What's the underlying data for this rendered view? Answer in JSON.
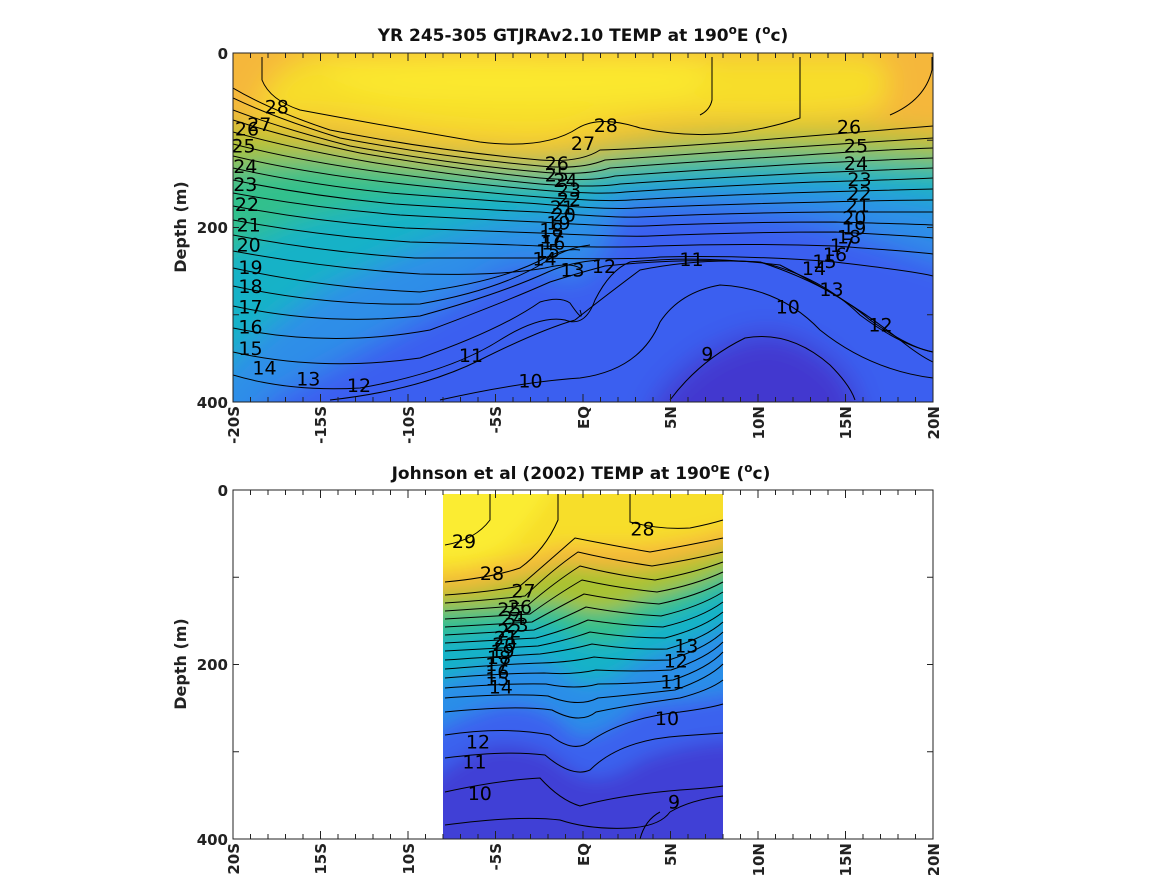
{
  "chart_data": [
    {
      "type": "heatmap",
      "title_parts": [
        "YR 245-305 GTJRAv2.10 TEMP at 190",
        "o",
        "E (",
        "o",
        "c)"
      ],
      "ylabel": "Depth (m)",
      "x_ticks": [
        "-20S",
        "-15S",
        "-10S",
        "-5S",
        "EQ",
        "5N",
        "10N",
        "15N",
        "20N"
      ],
      "x_tick_values": [
        -20,
        -15,
        -10,
        -5,
        0,
        5,
        10,
        15,
        20
      ],
      "xlim": [
        -20,
        20
      ],
      "y_ticks": [
        "0",
        "200",
        "400"
      ],
      "y_tick_values": [
        0,
        200,
        400
      ],
      "ylim": [
        0,
        400
      ],
      "y_inverted": true,
      "data_xlim": [
        -20,
        20
      ],
      "contour_levels": [
        9,
        10,
        11,
        12,
        13,
        14,
        15,
        16,
        17,
        18,
        19,
        20,
        21,
        22,
        23,
        24,
        25,
        26,
        27,
        28
      ],
      "colormap": [
        "#3e26a8",
        "#3a5ff0",
        "#2d8ee8",
        "#19b2c7",
        "#33c08c",
        "#a9c230",
        "#f5b73b",
        "#f9e326"
      ],
      "contour_labels": [
        {
          "text": "28",
          "lat": -17.5,
          "depth": 63
        },
        {
          "text": "27",
          "lat": -18.5,
          "depth": 83
        },
        {
          "text": "26",
          "lat": -19.2,
          "depth": 88
        },
        {
          "text": "25",
          "lat": -19.4,
          "depth": 108
        },
        {
          "text": "24",
          "lat": -19.3,
          "depth": 131
        },
        {
          "text": "23",
          "lat": -19.3,
          "depth": 152
        },
        {
          "text": "22",
          "lat": -19.2,
          "depth": 175
        },
        {
          "text": "21",
          "lat": -19.1,
          "depth": 198
        },
        {
          "text": "20",
          "lat": -19.1,
          "depth": 221
        },
        {
          "text": "19",
          "lat": -19.0,
          "depth": 247
        },
        {
          "text": "18",
          "lat": -19.0,
          "depth": 269
        },
        {
          "text": "17",
          "lat": -19.0,
          "depth": 292
        },
        {
          "text": "16",
          "lat": -19.0,
          "depth": 315
        },
        {
          "text": "15",
          "lat": -19.0,
          "depth": 340
        },
        {
          "text": "14",
          "lat": -18.2,
          "depth": 362
        },
        {
          "text": "13",
          "lat": -15.7,
          "depth": 375
        },
        {
          "text": "12",
          "lat": -12.8,
          "depth": 382
        },
        {
          "text": "11",
          "lat": -6.4,
          "depth": 348
        },
        {
          "text": "10",
          "lat": -3.0,
          "depth": 377
        },
        {
          "text": "9",
          "lat": 7.1,
          "depth": 346
        },
        {
          "text": "28",
          "lat": 1.3,
          "depth": 84
        },
        {
          "text": "27",
          "lat": 0.0,
          "depth": 105
        },
        {
          "text": "26",
          "lat": -1.5,
          "depth": 128
        },
        {
          "text": "25",
          "lat": -1.5,
          "depth": 141
        },
        {
          "text": "24",
          "lat": -1.0,
          "depth": 147
        },
        {
          "text": "23",
          "lat": -0.8,
          "depth": 158
        },
        {
          "text": "22",
          "lat": -0.8,
          "depth": 169
        },
        {
          "text": "21",
          "lat": -1.2,
          "depth": 178
        },
        {
          "text": "20",
          "lat": -1.1,
          "depth": 187
        },
        {
          "text": "19",
          "lat": -1.4,
          "depth": 196
        },
        {
          "text": "18",
          "lat": -1.8,
          "depth": 204
        },
        {
          "text": "17",
          "lat": -1.8,
          "depth": 212
        },
        {
          "text": "16",
          "lat": -1.7,
          "depth": 219
        },
        {
          "text": "15",
          "lat": -2.0,
          "depth": 228
        },
        {
          "text": "14",
          "lat": -2.2,
          "depth": 237
        },
        {
          "text": "13",
          "lat": -0.6,
          "depth": 250
        },
        {
          "text": "12",
          "lat": 1.2,
          "depth": 246
        },
        {
          "text": "11",
          "lat": 6.2,
          "depth": 238
        },
        {
          "text": "10",
          "lat": 11.7,
          "depth": 292
        },
        {
          "text": "26",
          "lat": 15.2,
          "depth": 86
        },
        {
          "text": "25",
          "lat": 15.6,
          "depth": 108
        },
        {
          "text": "24",
          "lat": 15.6,
          "depth": 128
        },
        {
          "text": "23",
          "lat": 15.8,
          "depth": 146
        },
        {
          "text": "22",
          "lat": 15.8,
          "depth": 162
        },
        {
          "text": "21",
          "lat": 15.7,
          "depth": 176
        },
        {
          "text": "20",
          "lat": 15.5,
          "depth": 190
        },
        {
          "text": "19",
          "lat": 15.5,
          "depth": 202
        },
        {
          "text": "18",
          "lat": 15.2,
          "depth": 212
        },
        {
          "text": "17",
          "lat": 14.8,
          "depth": 222
        },
        {
          "text": "16",
          "lat": 14.4,
          "depth": 232
        },
        {
          "text": "15",
          "lat": 13.8,
          "depth": 240
        },
        {
          "text": "14",
          "lat": 13.2,
          "depth": 248
        },
        {
          "text": "13",
          "lat": 14.2,
          "depth": 272
        },
        {
          "text": "12",
          "lat": 17.0,
          "depth": 313
        }
      ]
    },
    {
      "type": "heatmap",
      "title_parts": [
        "Johnson et al (2002) TEMP at 190",
        "o",
        "E (",
        "o",
        "c)"
      ],
      "ylabel": "Depth (m)",
      "x_ticks": [
        "-20S",
        "-15S",
        "-10S",
        "-5S",
        "EQ",
        "5N",
        "10N",
        "15N",
        "20N"
      ],
      "x_tick_values": [
        -20,
        -15,
        -10,
        -5,
        0,
        5,
        10,
        15,
        20
      ],
      "xlim": [
        -20,
        20
      ],
      "y_ticks": [
        "0",
        "200",
        "400"
      ],
      "y_tick_values": [
        0,
        200,
        400
      ],
      "ylim": [
        0,
        400
      ],
      "y_inverted": true,
      "data_xlim": [
        -8,
        8
      ],
      "contour_levels": [
        9,
        10,
        11,
        12,
        13,
        14,
        15,
        16,
        17,
        18,
        19,
        20,
        21,
        22,
        23,
        24,
        25,
        26,
        27,
        28,
        29
      ],
      "colormap": [
        "#3e26a8",
        "#3a5ff0",
        "#2d8ee8",
        "#19b2c7",
        "#33c08c",
        "#a9c230",
        "#f5b73b",
        "#f9e326"
      ],
      "contour_labels": [
        {
          "text": "29",
          "lat": -6.8,
          "depth": 60
        },
        {
          "text": "28",
          "lat": -5.2,
          "depth": 97
        },
        {
          "text": "28",
          "lat": 3.4,
          "depth": 46
        },
        {
          "text": "27",
          "lat": -3.4,
          "depth": 117
        },
        {
          "text": "26",
          "lat": -3.6,
          "depth": 135
        },
        {
          "text": "25",
          "lat": -4.2,
          "depth": 138
        },
        {
          "text": "24",
          "lat": -4.0,
          "depth": 148
        },
        {
          "text": "23",
          "lat": -3.8,
          "depth": 156
        },
        {
          "text": "22",
          "lat": -4.2,
          "depth": 163
        },
        {
          "text": "21",
          "lat": -4.4,
          "depth": 171
        },
        {
          "text": "20",
          "lat": -4.5,
          "depth": 178
        },
        {
          "text": "19",
          "lat": -4.6,
          "depth": 186
        },
        {
          "text": "18",
          "lat": -4.8,
          "depth": 193
        },
        {
          "text": "17",
          "lat": -4.9,
          "depth": 201
        },
        {
          "text": "16",
          "lat": -4.9,
          "depth": 210
        },
        {
          "text": "15",
          "lat": -4.9,
          "depth": 218
        },
        {
          "text": "14",
          "lat": -4.7,
          "depth": 227
        },
        {
          "text": "13",
          "lat": 5.9,
          "depth": 180
        },
        {
          "text": "12",
          "lat": 5.3,
          "depth": 197
        },
        {
          "text": "11",
          "lat": 5.1,
          "depth": 221
        },
        {
          "text": "10",
          "lat": 4.8,
          "depth": 263
        },
        {
          "text": "12",
          "lat": -6.0,
          "depth": 290
        },
        {
          "text": "11",
          "lat": -6.2,
          "depth": 313
        },
        {
          "text": "10",
          "lat": -5.9,
          "depth": 349
        },
        {
          "text": "9",
          "lat": 5.2,
          "depth": 359
        }
      ]
    }
  ]
}
